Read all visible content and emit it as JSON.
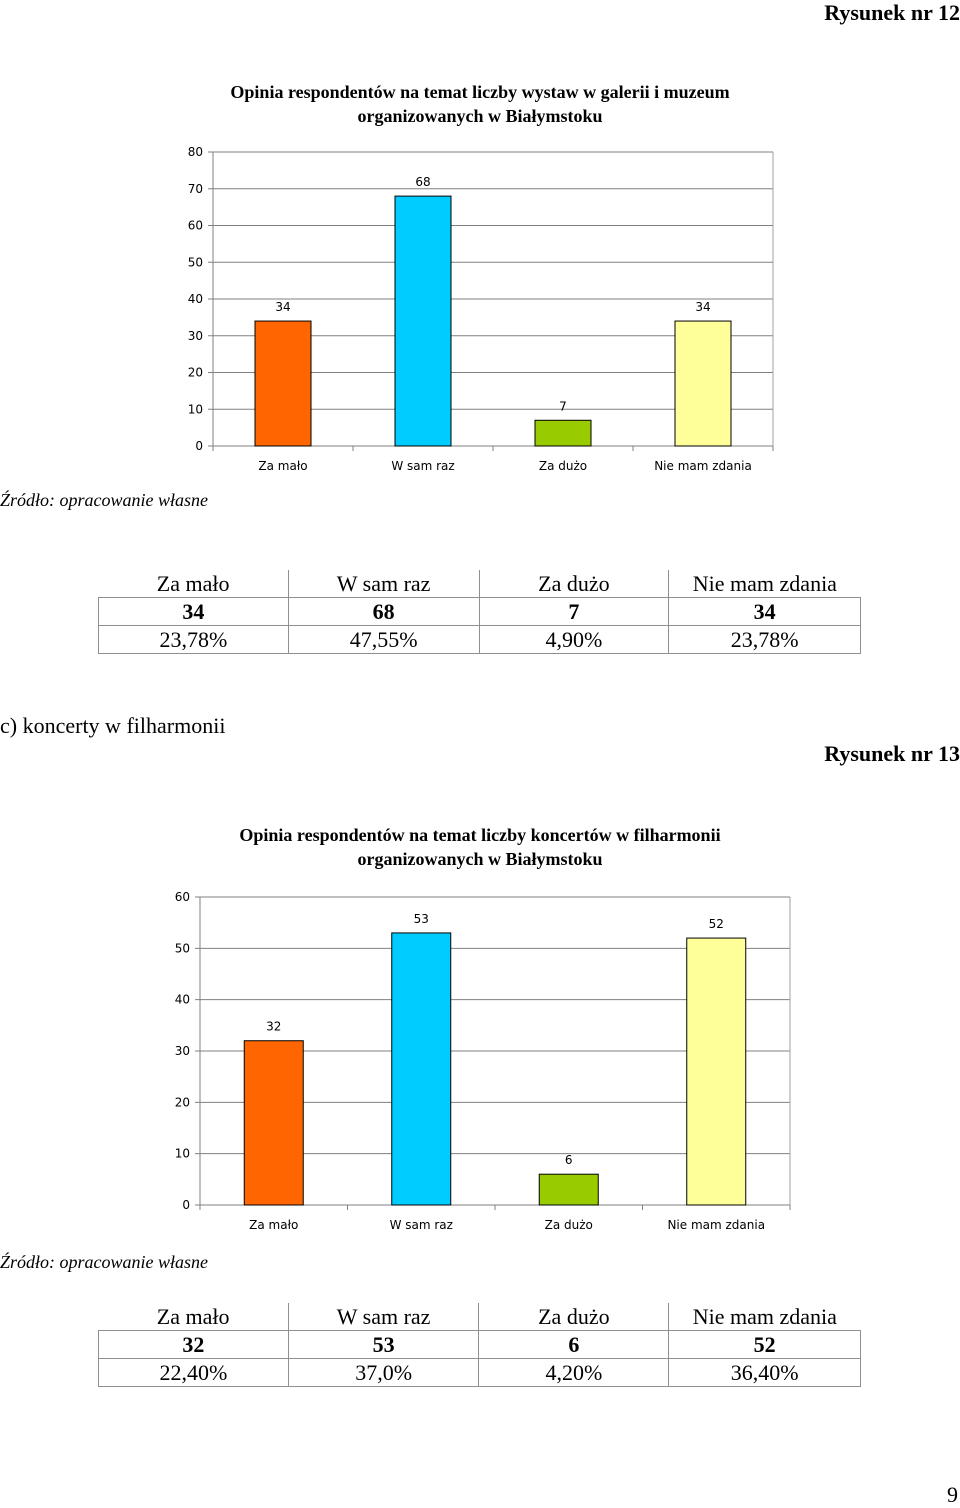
{
  "figure1": {
    "label": "Rysunek nr 12",
    "title_line1": "Opinia respondentów na temat liczby wystaw w galerii i muzeum",
    "title_line2": "organizowanych w Białymstoku"
  },
  "source1": "Źródło: opracowanie własne",
  "table1": {
    "headers": [
      "Za mało",
      "W sam raz",
      "Za dużo",
      "Nie mam zdania"
    ],
    "counts": [
      "34",
      "68",
      "7",
      "34"
    ],
    "percents": [
      "23,78%",
      "47,55%",
      "4,90%",
      "23,78%"
    ]
  },
  "section_c": "c) koncerty w filharmonii",
  "figure2": {
    "label": "Rysunek nr 13",
    "title_line1": "Opinia respondentów na temat liczby koncertów w filharmonii",
    "title_line2": "organizowanych w Białymstoku"
  },
  "source2": "Źródło: opracowanie własne",
  "table2": {
    "headers": [
      "Za mało",
      "W sam raz",
      "Za dużo",
      "Nie mam zdania"
    ],
    "counts": [
      "32",
      "53",
      "6",
      "52"
    ],
    "percents": [
      "22,40%",
      "37,0%",
      "4,20%",
      "36,40%"
    ]
  },
  "page_number": "9",
  "chart_data": [
    {
      "type": "bar",
      "title": "Opinia respondentów na temat liczby wystaw w galerii i muzeum organizowanych w Białymstoku",
      "categories": [
        "Za mało",
        "W sam raz",
        "Za dużo",
        "Nie mam zdania"
      ],
      "values": [
        34,
        68,
        7,
        34
      ],
      "colors": [
        "#ff6600",
        "#00ccff",
        "#99cc00",
        "#ffff99"
      ],
      "ylim": [
        0,
        80
      ],
      "yticks": [
        0,
        10,
        20,
        30,
        40,
        50,
        60,
        70,
        80
      ],
      "grid": true,
      "xlabel": "",
      "ylabel": ""
    },
    {
      "type": "bar",
      "title": "Opinia respondentów na temat liczby koncertów w filharmonii organizowanych w Białymstoku",
      "categories": [
        "Za mało",
        "W sam raz",
        "Za dużo",
        "Nie mam zdania"
      ],
      "values": [
        32,
        53,
        6,
        52
      ],
      "colors": [
        "#ff6600",
        "#00ccff",
        "#99cc00",
        "#ffff99"
      ],
      "ylim": [
        0,
        60
      ],
      "yticks": [
        0,
        10,
        20,
        30,
        40,
        50,
        60
      ],
      "grid": true,
      "xlabel": "",
      "ylabel": ""
    }
  ]
}
